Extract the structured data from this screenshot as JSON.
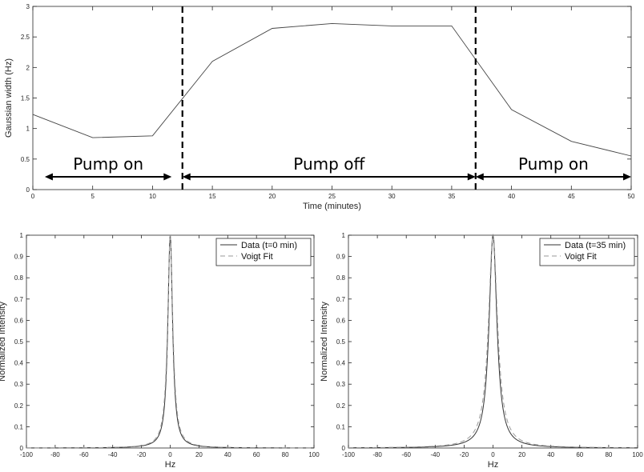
{
  "chart_data": [
    {
      "type": "line",
      "id": "top",
      "xlabel": "Time (minutes)",
      "ylabel": "Gaussian width (Hz)",
      "xlim": [
        0,
        50
      ],
      "ylim": [
        0,
        3
      ],
      "xticks": [
        "0",
        "5",
        "10",
        "15",
        "20",
        "25",
        "30",
        "35",
        "40",
        "45",
        "50"
      ],
      "yticks": [
        "0",
        "0.5",
        "1",
        "1.5",
        "2",
        "2.5",
        "3"
      ],
      "series": [
        {
          "name": "Gaussian width",
          "x": [
            0,
            5,
            10,
            15,
            20,
            25,
            30,
            35,
            40,
            45,
            50
          ],
          "y": [
            1.23,
            0.85,
            0.88,
            2.1,
            2.64,
            2.72,
            2.68,
            2.68,
            1.31,
            0.79,
            0.55
          ]
        }
      ],
      "vlines": [
        12.5,
        37
      ],
      "annotations": [
        {
          "label": "Pump on",
          "x_start": 1,
          "x_end": 11.6,
          "y": 0.21
        },
        {
          "label": "Pump off",
          "x_start": 12.5,
          "x_end": 37,
          "y": 0.21
        },
        {
          "label": "Pump on",
          "x_start": 37,
          "x_end": 50,
          "y": 0.21
        }
      ]
    },
    {
      "type": "line",
      "id": "bottom-left",
      "xlabel": "Hz",
      "ylabel": "Normalized Intensity",
      "xlim": [
        -100,
        100
      ],
      "ylim": [
        0,
        1
      ],
      "xticks": [
        "-100",
        "-80",
        "-60",
        "-40",
        "-20",
        "0",
        "20",
        "40",
        "60",
        "80",
        "100"
      ],
      "yticks": [
        "0",
        "0.1",
        "0.2",
        "0.3",
        "0.4",
        "0.5",
        "0.6",
        "0.7",
        "0.8",
        "0.9",
        "1"
      ],
      "series": [
        {
          "name": "Data (t=0 min)",
          "style": "solid",
          "center": 0,
          "hwhm": 2.0
        },
        {
          "name": "Voigt Fit",
          "style": "dashed",
          "center": 0,
          "hwhm": 2.2
        }
      ],
      "legend": [
        "Data (t=0 min)",
        "Voigt Fit"
      ]
    },
    {
      "type": "line",
      "id": "bottom-right",
      "xlabel": "Hz",
      "ylabel": "Normalized Intensity",
      "xlim": [
        -100,
        100
      ],
      "ylim": [
        0,
        1
      ],
      "xticks": [
        "-100",
        "-80",
        "-60",
        "-40",
        "-20",
        "0",
        "20",
        "40",
        "60",
        "80",
        "100"
      ],
      "yticks": [
        "0",
        "0.1",
        "0.2",
        "0.3",
        "0.4",
        "0.5",
        "0.6",
        "0.7",
        "0.8",
        "0.9",
        "1"
      ],
      "series": [
        {
          "name": "Data (t=35 min)",
          "style": "solid",
          "center": 0,
          "hwhm": 3.3
        },
        {
          "name": "Voigt Fit",
          "style": "dashed",
          "center": 0,
          "hwhm": 3.8
        }
      ],
      "legend": [
        "Data (t=35 min)",
        "Voigt Fit"
      ]
    }
  ]
}
